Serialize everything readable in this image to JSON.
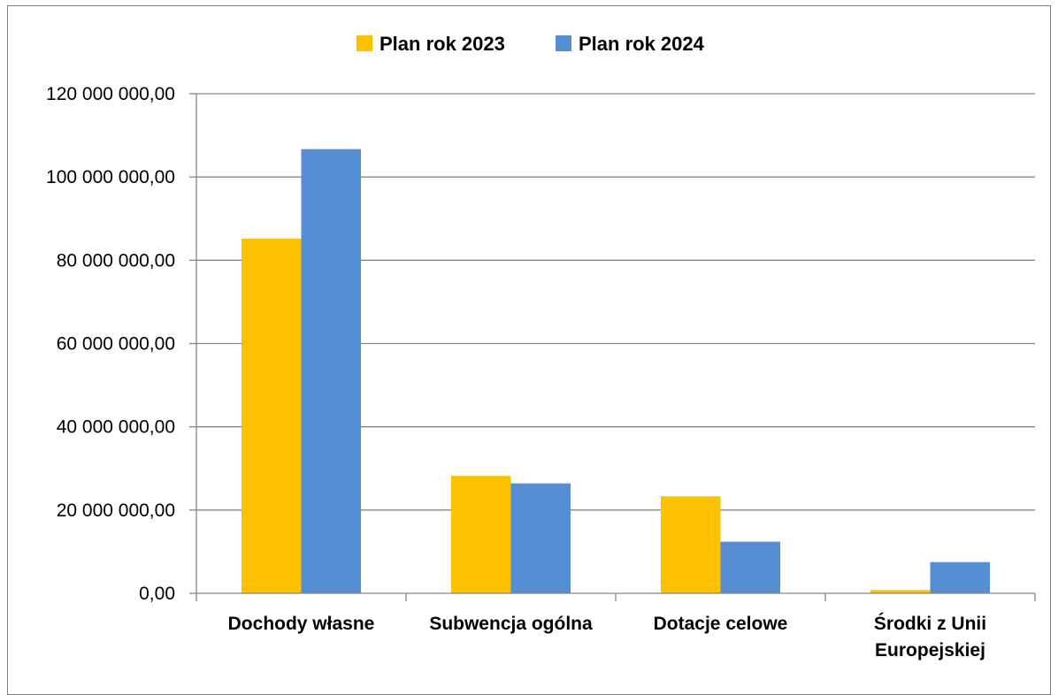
{
  "chart_data": {
    "type": "bar",
    "title": "",
    "xlabel": "",
    "ylabel": "",
    "categories": [
      [
        "Dochody własne"
      ],
      [
        "Subwencja ogólna"
      ],
      [
        "Dotacje celowe"
      ],
      [
        "Środki z Unii",
        "Europejskiej"
      ]
    ],
    "series": [
      {
        "name": "Plan rok 2023",
        "color": "#FFC000",
        "values": [
          85200000,
          28200000,
          23300000,
          800000
        ]
      },
      {
        "name": "Plan rok 2024",
        "color": "#558ED5",
        "values": [
          106700000,
          26400000,
          12400000,
          7500000
        ]
      }
    ],
    "ylim": [
      0,
      120000000
    ],
    "yticks": [
      0,
      20000000,
      40000000,
      60000000,
      80000000,
      100000000,
      120000000
    ],
    "ytick_labels": [
      "0,00",
      "20 000 000,00",
      "40 000 000,00",
      "60 000 000,00",
      "80 000 000,00",
      "100 000 000,00",
      "120 000 000,00"
    ],
    "grid": true,
    "gridline_color": "#868686",
    "legend_position": "top"
  }
}
